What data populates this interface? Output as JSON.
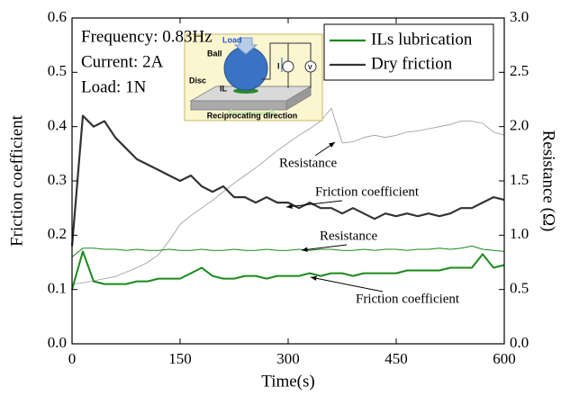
{
  "chart_data": {
    "type": "line",
    "x_label": "Time(s)",
    "y_label": "Friction coefficient",
    "y2_label": "Resistance (Ω)",
    "xlim": [
      0,
      600
    ],
    "xticks": [
      0,
      150,
      300,
      450,
      600
    ],
    "ylim": [
      0,
      0.6
    ],
    "yticks": [
      {
        "value": 0,
        "label": "0.0"
      },
      0.1,
      0.2,
      0.3,
      0.4,
      0.5,
      0.6
    ],
    "y2lim": [
      0,
      3
    ],
    "y2ticks": [
      {
        "value": 0,
        "label": "0.0"
      },
      0.5,
      {
        "value": 1,
        "label": "1.0"
      },
      1.5,
      {
        "value": 2,
        "label": "2.0"
      },
      2.5,
      {
        "value": 3,
        "label": "3.0"
      }
    ],
    "x": [
      0,
      15,
      30,
      45,
      60,
      75,
      90,
      105,
      120,
      135,
      150,
      165,
      180,
      195,
      210,
      225,
      240,
      255,
      270,
      285,
      300,
      315,
      330,
      345,
      360,
      375,
      390,
      405,
      420,
      435,
      450,
      465,
      480,
      495,
      510,
      525,
      540,
      555,
      570,
      585,
      600
    ],
    "series": [
      {
        "color": "#999999",
        "axis": "y2",
        "values": [
          0.55,
          0.56,
          0.58,
          0.6,
          0.62,
          0.66,
          0.7,
          0.75,
          0.82,
          0.95,
          1.1,
          1.18,
          1.25,
          1.32,
          1.4,
          1.48,
          1.55,
          1.62,
          1.7,
          1.78,
          1.85,
          1.92,
          1.98,
          2.05,
          2.17,
          1.85,
          1.86,
          1.9,
          1.92,
          1.9,
          1.92,
          1.95,
          1.96,
          1.98,
          2.0,
          2.02,
          2.05,
          2.05,
          2.03,
          1.95,
          1.92
        ]
      },
      {
        "color": "#1a8a1a",
        "axis": "y2",
        "values": [
          0.8,
          0.88,
          0.88,
          0.87,
          0.87,
          0.86,
          0.87,
          0.86,
          0.86,
          0.87,
          0.86,
          0.86,
          0.87,
          0.86,
          0.86,
          0.87,
          0.86,
          0.86,
          0.87,
          0.86,
          0.86,
          0.87,
          0.86,
          0.87,
          0.87,
          0.86,
          0.86,
          0.87,
          0.86,
          0.87,
          0.87,
          0.86,
          0.87,
          0.87,
          0.88,
          0.87,
          0.88,
          0.9,
          0.87,
          0.86,
          0.85
        ]
      },
      {
        "color": "#333333",
        "values": [
          0.18,
          0.42,
          0.4,
          0.41,
          0.38,
          0.36,
          0.34,
          0.33,
          0.32,
          0.31,
          0.3,
          0.31,
          0.29,
          0.28,
          0.29,
          0.27,
          0.27,
          0.26,
          0.27,
          0.26,
          0.26,
          0.25,
          0.26,
          0.25,
          0.25,
          0.24,
          0.25,
          0.24,
          0.23,
          0.24,
          0.235,
          0.24,
          0.235,
          0.24,
          0.235,
          0.24,
          0.25,
          0.25,
          0.26,
          0.27,
          0.265
        ]
      },
      {
        "color": "#1a8a1a",
        "values": [
          0.1,
          0.17,
          0.115,
          0.11,
          0.11,
          0.11,
          0.115,
          0.115,
          0.12,
          0.12,
          0.12,
          0.13,
          0.14,
          0.125,
          0.12,
          0.12,
          0.125,
          0.125,
          0.12,
          0.125,
          0.125,
          0.125,
          0.13,
          0.125,
          0.13,
          0.13,
          0.125,
          0.13,
          0.13,
          0.13,
          0.13,
          0.135,
          0.135,
          0.135,
          0.135,
          0.14,
          0.14,
          0.14,
          0.165,
          0.14,
          0.145
        ]
      }
    ],
    "legend": [
      {
        "name": "ILs lubrication",
        "color": "#1a8a1a"
      },
      {
        "name": "Dry friction",
        "color": "#333333"
      }
    ],
    "conditions": [
      "Frequency: 0.83Hz",
      "Current: 2A",
      "Load: 1N"
    ],
    "annotations": [
      "Resistance",
      "Friction coefficient",
      "Resistance",
      "Friction coefficient"
    ],
    "inset": {
      "load": "Load",
      "ball": "Ball",
      "disc": "Disc",
      "il": "IL",
      "current": "I",
      "voltage": "V",
      "direction": "Reciprocating direction"
    }
  }
}
